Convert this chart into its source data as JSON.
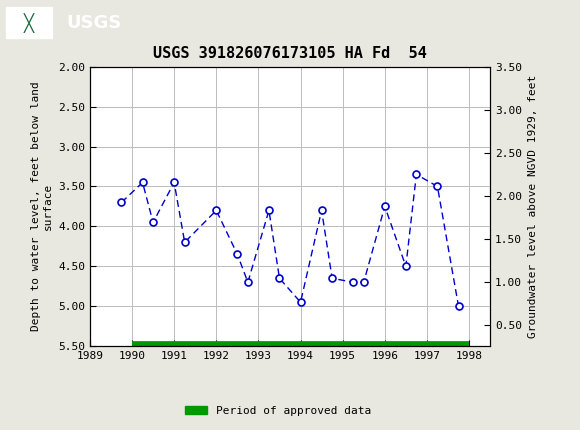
{
  "title": "USGS 391826076173105 HA Fd  54",
  "ylabel_left": "Depth to water level, feet below land\nsurface",
  "ylabel_right": "Groundwater level above NGVD 1929, feet",
  "xlim": [
    1989,
    1998.5
  ],
  "ylim_left_top": 2.0,
  "ylim_left_bottom": 5.5,
  "ylim_right_top": 3.5,
  "ylim_right_bottom": 0.25,
  "xticks": [
    1989,
    1990,
    1991,
    1992,
    1993,
    1994,
    1995,
    1996,
    1997,
    1998
  ],
  "yticks_left": [
    2.0,
    2.5,
    3.0,
    3.5,
    4.0,
    4.5,
    5.0,
    5.5
  ],
  "yticks_right": [
    3.5,
    3.0,
    2.5,
    2.0,
    1.5,
    1.0,
    0.5
  ],
  "x_data": [
    1989.75,
    1990.25,
    1990.5,
    1991.0,
    1991.25,
    1992.0,
    1992.5,
    1992.75,
    1993.25,
    1993.5,
    1994.0,
    1994.5,
    1994.75,
    1995.25,
    1995.5,
    1996.0,
    1996.5,
    1996.75,
    1997.25,
    1997.75
  ],
  "y_data": [
    3.7,
    3.45,
    3.95,
    3.45,
    4.2,
    3.8,
    4.35,
    4.7,
    3.8,
    4.65,
    4.95,
    3.8,
    4.65,
    4.7,
    4.7,
    3.75,
    4.5,
    3.35,
    3.5,
    5.0
  ],
  "line_color": "#0000CC",
  "marker_facecolor": "white",
  "marker_edgecolor": "#0000CC",
  "marker_size": 5,
  "green_bar_color": "#009900",
  "green_bar_xstart": 1990.0,
  "green_bar_xend": 1998.0,
  "legend_label": "Period of approved data",
  "header_color": "#1a6b3c",
  "background_color": "#e8e8e0",
  "plot_bg_color": "#ffffff",
  "grid_color": "#bbbbbb",
  "title_fontsize": 11,
  "tick_fontsize": 8,
  "label_fontsize": 8
}
